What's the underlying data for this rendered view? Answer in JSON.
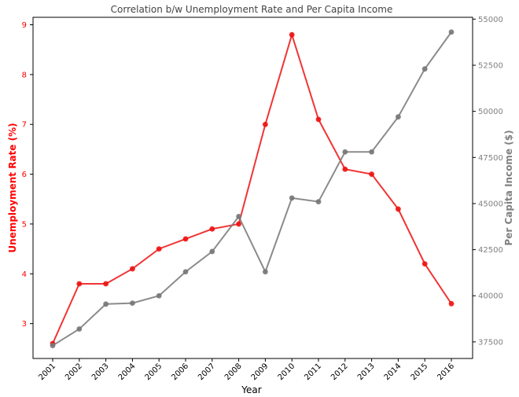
{
  "chart_data": {
    "type": "line",
    "title": "Correlation b/w Unemployment Rate and Per Capita Income",
    "xlabel": "Year",
    "ylabel_left": "Unemployment Rate (%)",
    "ylabel_right": "Per Capita Income ($)",
    "categories": [
      "2001",
      "2002",
      "2003",
      "2004",
      "2005",
      "2006",
      "2007",
      "2008",
      "2009",
      "2010",
      "2011",
      "2012",
      "2013",
      "2014",
      "2015",
      "2016"
    ],
    "ylim_left": [
      2.3,
      9.15
    ],
    "ylim_right": [
      36600,
      55100
    ],
    "yticks_left": [
      3,
      4,
      5,
      6,
      7,
      8,
      9
    ],
    "yticks_right": [
      37500,
      40000,
      42500,
      45000,
      47500,
      50000,
      52500,
      55000
    ],
    "grid": false,
    "colors": {
      "left": "#ee1111",
      "right": "#777777",
      "axis_text_left": "#ff0000",
      "axis_text_right": "#808080"
    },
    "series": [
      {
        "axis": "left",
        "color": "#ee1111",
        "values": [
          2.6,
          3.8,
          3.8,
          4.1,
          4.5,
          4.7,
          4.9,
          5.0,
          7.0,
          8.8,
          7.1,
          6.1,
          6.0,
          5.3,
          4.2,
          3.4
        ]
      },
      {
        "axis": "right",
        "color": "#777777",
        "values": [
          37300,
          38200,
          39550,
          39600,
          40000,
          41300,
          42400,
          44300,
          41300,
          45300,
          45100,
          47800,
          47800,
          49700,
          52300,
          54300
        ]
      }
    ]
  }
}
